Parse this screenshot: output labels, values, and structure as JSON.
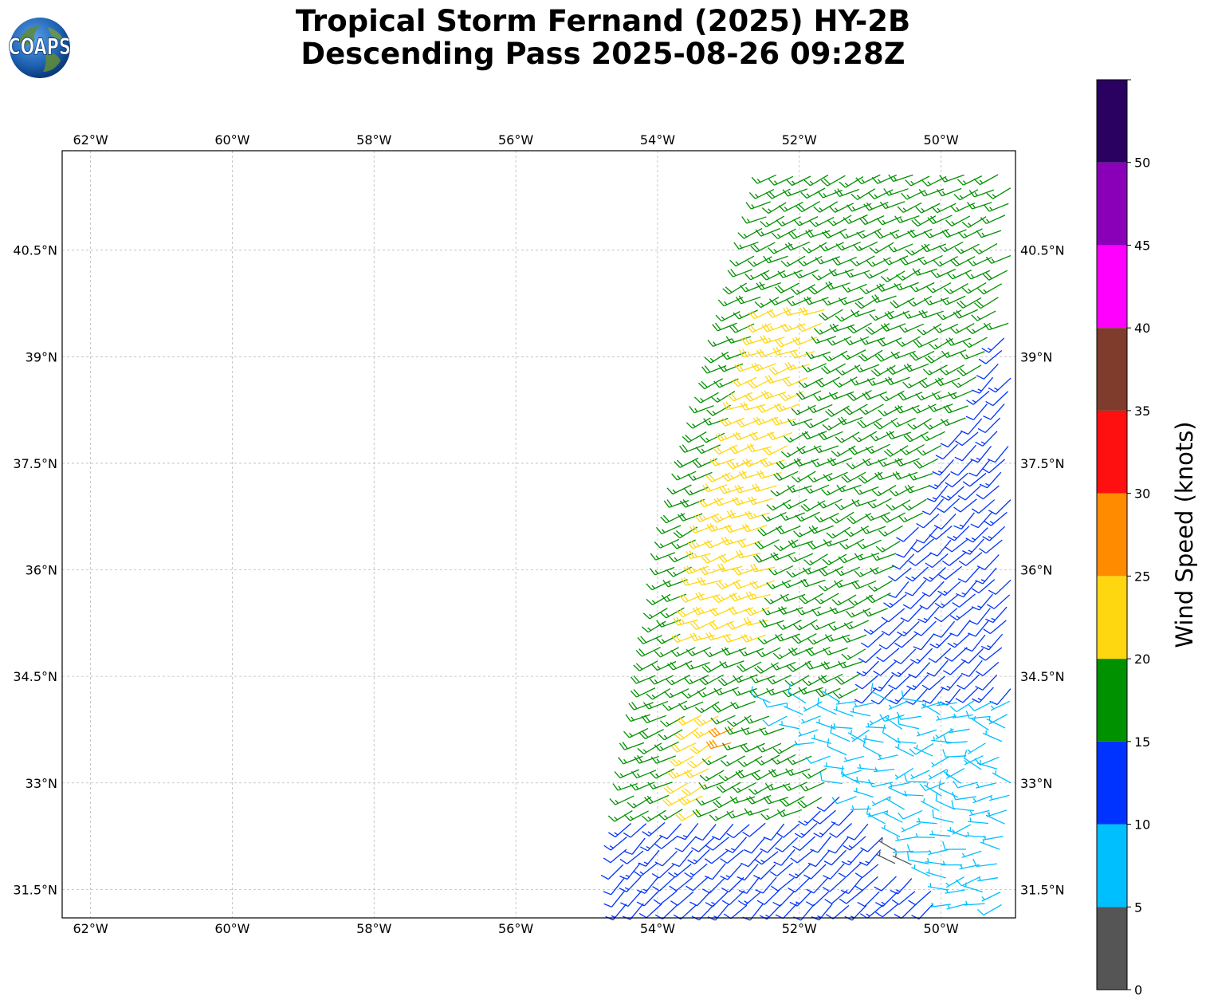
{
  "title": {
    "line1": "Tropical Storm Fernand (2025) HY-2B",
    "line2": "Descending Pass 2025-08-26 09:28Z"
  },
  "logo": {
    "text": "COAPS",
    "icon": "globe-icon"
  },
  "map": {
    "lon_range": [
      -62.4,
      -48.95
    ],
    "lat_range": [
      31.1,
      41.9
    ],
    "lon_ticks": [
      {
        "value": -62,
        "label": "62°W"
      },
      {
        "value": -60,
        "label": "60°W"
      },
      {
        "value": -58,
        "label": "58°W"
      },
      {
        "value": -56,
        "label": "56°W"
      },
      {
        "value": -54,
        "label": "54°W"
      },
      {
        "value": -52,
        "label": "52°W"
      },
      {
        "value": -50,
        "label": "50°W"
      }
    ],
    "lat_ticks": [
      {
        "value": 40.5,
        "label": "40.5°N"
      },
      {
        "value": 39,
        "label": "39°N"
      },
      {
        "value": 37.5,
        "label": "37.5°N"
      },
      {
        "value": 36,
        "label": "36°N"
      },
      {
        "value": 34.5,
        "label": "34.5°N"
      },
      {
        "value": 33,
        "label": "33°N"
      },
      {
        "value": 31.5,
        "label": "31.5°N"
      }
    ],
    "grid": true
  },
  "colorbar": {
    "label": "Wind Speed (knots)",
    "bins": [
      {
        "min": 0,
        "max": 5,
        "color": "#555555"
      },
      {
        "min": 5,
        "max": 10,
        "color": "#00bfff"
      },
      {
        "min": 10,
        "max": 15,
        "color": "#0033ff"
      },
      {
        "min": 15,
        "max": 20,
        "color": "#009100"
      },
      {
        "min": 20,
        "max": 25,
        "color": "#ffd710"
      },
      {
        "min": 25,
        "max": 30,
        "color": "#ff8c00"
      },
      {
        "min": 30,
        "max": 35,
        "color": "#ff1010"
      },
      {
        "min": 35,
        "max": 40,
        "color": "#7f3b2b"
      },
      {
        "min": 40,
        "max": 45,
        "color": "#ff00ff"
      },
      {
        "min": 45,
        "max": 50,
        "color": "#8a00b8"
      },
      {
        "min": 50,
        "max": 55,
        "color": "#2a0060"
      }
    ],
    "ticks": [
      0,
      5,
      10,
      15,
      20,
      25,
      30,
      35,
      40,
      45,
      50
    ]
  },
  "chart_data": {
    "type": "scatter",
    "mark": "wind-barbs",
    "title": "Tropical Storm Fernand (2025) HY-2B Descending Pass 2025-08-26 09:28Z",
    "xlabel": "",
    "ylabel": "",
    "x_range": [
      -62.4,
      -48.95
    ],
    "y_range": [
      31.1,
      41.9
    ],
    "swath": {
      "west_edge": [
        [
          -52.3,
          41.6
        ],
        [
          -53.7,
          36.5
        ],
        [
          -54.1,
          34.0
        ],
        [
          -54.5,
          31.8
        ],
        [
          -54.4,
          31.1
        ]
      ],
      "east_edge_lon": -48.95,
      "lon_step": 0.24,
      "lat_step": 0.19
    },
    "wind_regions": [
      {
        "speed_kt": 22,
        "from_dir_deg": 250,
        "lon": [
          -53.9,
          -52.1
        ],
        "lat": [
          35.0,
          39.7
        ]
      },
      {
        "speed_kt": 22,
        "from_dir_deg": 240,
        "lon": [
          -53.6,
          -52.8
        ],
        "lat": [
          32.5,
          34.0
        ]
      },
      {
        "speed_kt": 27,
        "from_dir_deg": 250,
        "lon": [
          -53.1,
          -52.9
        ],
        "lat": [
          33.4,
          33.8
        ]
      },
      {
        "speed_kt": 17,
        "from_dir_deg": 245,
        "lon": [
          -54.3,
          -50.0
        ],
        "lat": [
          32.5,
          41.6
        ]
      },
      {
        "speed_kt": 12,
        "from_dir_deg": 225,
        "lon": [
          -54.5,
          -48.95
        ],
        "lat": [
          31.6,
          41.6
        ]
      },
      {
        "speed_kt": 7,
        "from_dir_deg": 270,
        "lon": [
          -52.5,
          -48.95
        ],
        "lat": [
          31.1,
          34.2
        ]
      },
      {
        "speed_kt": 4,
        "from_dir_deg": 300,
        "lon": [
          -50.65,
          -50.4
        ],
        "lat": [
          31.8,
          32.15
        ]
      }
    ]
  }
}
